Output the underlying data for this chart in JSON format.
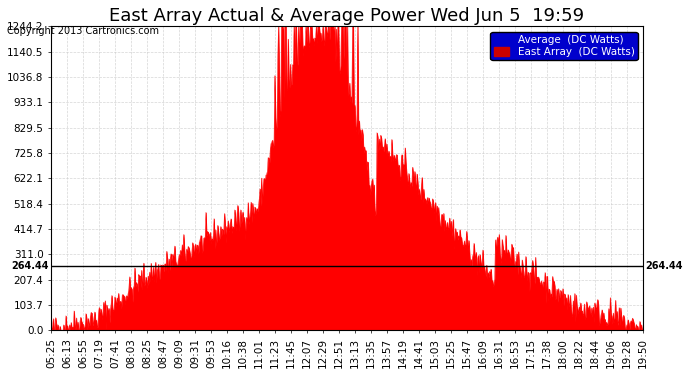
{
  "title": "East Array Actual & Average Power Wed Jun 5  19:59",
  "copyright": "Copyright 2013 Cartronics.com",
  "ymax": 1244.2,
  "ymin": 0.0,
  "yticks": [
    0.0,
    103.7,
    207.4,
    311.0,
    414.7,
    518.4,
    622.1,
    725.8,
    829.5,
    933.1,
    1036.8,
    1140.5,
    1244.2
  ],
  "average_line": 264.44,
  "legend_avg_label": "Average  (DC Watts)",
  "legend_east_label": "East Array  (DC Watts)",
  "legend_avg_color": "#0000cc",
  "legend_east_color": "#cc0000",
  "area_color": "#ff0000",
  "area_edge_color": "#cc0000",
  "background_color": "#ffffff",
  "plot_bg_color": "#ffffff",
  "grid_color": "#cccccc",
  "avg_line_color": "#000000",
  "title_fontsize": 13,
  "tick_fontsize": 7.5,
  "xtick_labels": [
    "05:25",
    "06:13",
    "06:55",
    "07:19",
    "07:41",
    "08:03",
    "08:25",
    "08:47",
    "09:09",
    "09:31",
    "09:53",
    "10:16",
    "10:38",
    "11:01",
    "11:23",
    "11:45",
    "12:07",
    "12:29",
    "12:51",
    "13:13",
    "13:35",
    "13:57",
    "14:19",
    "14:41",
    "15:03",
    "15:25",
    "15:47",
    "16:09",
    "16:31",
    "16:53",
    "17:15",
    "17:38",
    "18:00",
    "18:22",
    "18:44",
    "19:06",
    "19:28",
    "19:50"
  ],
  "num_points": 800
}
